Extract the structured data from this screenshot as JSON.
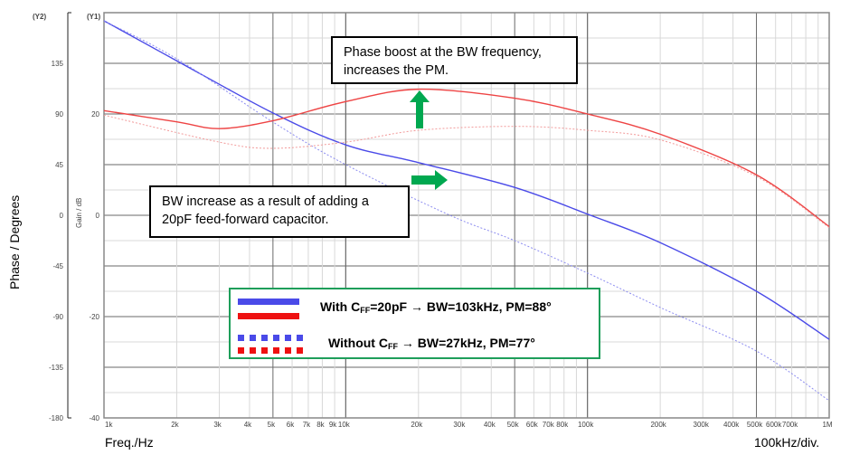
{
  "chart_data": {
    "type": "line",
    "xscale": "log",
    "xlim": [
      1000,
      1000000
    ],
    "x_ticks": [
      {
        "value": 1000,
        "label": "1k"
      },
      {
        "value": 2000,
        "label": "2k"
      },
      {
        "value": 3000,
        "label": "3k"
      },
      {
        "value": 4000,
        "label": "4k"
      },
      {
        "value": 5000,
        "label": "5k"
      },
      {
        "value": 6000,
        "label": "6k"
      },
      {
        "value": 7000,
        "label": "7k"
      },
      {
        "value": 8000,
        "label": "8k"
      },
      {
        "value": 9000,
        "label": "9k"
      },
      {
        "value": 10000,
        "label": "10k"
      },
      {
        "value": 20000,
        "label": "20k"
      },
      {
        "value": 30000,
        "label": "30k"
      },
      {
        "value": 40000,
        "label": "40k"
      },
      {
        "value": 50000,
        "label": "50k"
      },
      {
        "value": 60000,
        "label": "60k"
      },
      {
        "value": 70000,
        "label": "70k"
      },
      {
        "value": 80000,
        "label": "80k"
      },
      {
        "value": 100000,
        "label": "100k"
      },
      {
        "value": 200000,
        "label": "200k"
      },
      {
        "value": 300000,
        "label": "300k"
      },
      {
        "value": 400000,
        "label": "400k"
      },
      {
        "value": 500000,
        "label": "500k"
      },
      {
        "value": 600000,
        "label": "600k"
      },
      {
        "value": 700000,
        "label": "700k"
      },
      {
        "value": 1000000,
        "label": "1M"
      }
    ],
    "xlabel": "Freq./Hz",
    "xlabel_right": "100kHz/div.",
    "y1": {
      "tag": "(Y1)",
      "label": "Gain / dB",
      "ylim": [
        -40,
        40
      ],
      "ticks": [
        20,
        0,
        -20,
        -40
      ]
    },
    "y2": {
      "tag": "(Y2)",
      "label": "Phase / Degrees",
      "ylim": [
        -180,
        180
      ],
      "ticks": [
        135,
        90,
        45,
        0,
        -45,
        -90,
        -135,
        -180
      ]
    },
    "grid": true,
    "series": [
      {
        "axis": "y1",
        "color": "#4a4ae8",
        "style": "solid",
        "x": [
          1000,
          2000,
          5000,
          10000,
          20000,
          50000,
          103000,
          200000,
          500000,
          1000000
        ],
        "values": [
          38.4,
          30.5,
          20.2,
          13.9,
          10.4,
          5.5,
          0,
          -5.4,
          -15,
          -24.5
        ]
      },
      {
        "axis": "y1",
        "color": "#8c8cf0",
        "style": "dotted",
        "x": [
          1000,
          2000,
          5000,
          10000,
          27000,
          50000,
          100000,
          200000,
          500000,
          1000000
        ],
        "values": [
          38.4,
          30.9,
          18.4,
          10,
          0,
          -5,
          -11.4,
          -18.2,
          -26.8,
          -36.6
        ]
      },
      {
        "axis": "y2",
        "color": "#ee4444",
        "style": "solid",
        "x": [
          1000,
          2000,
          3000,
          5000,
          10000,
          20000,
          50000,
          100000,
          200000,
          500000,
          1000000
        ],
        "values": [
          93,
          83,
          77,
          84,
          101,
          112,
          104,
          90,
          72,
          36,
          -10
        ]
      },
      {
        "axis": "y2",
        "color": "#f29a9a",
        "style": "dotted",
        "x": [
          1000,
          3000,
          5000,
          10000,
          20000,
          50000,
          100000,
          200000,
          500000,
          1000000
        ],
        "values": [
          89,
          65,
          59.5,
          65,
          75.5,
          79,
          75.5,
          67,
          34.5,
          -11
        ]
      }
    ],
    "annotations": [
      {
        "text_lines": [
          "Phase boost at the BW frequency,",
          "increases the PM."
        ],
        "arrow": "up",
        "arrow_color": "#00a850"
      },
      {
        "text_lines": [
          "BW increase as a result of adding a",
          "20pF feed-forward capacitor."
        ],
        "arrow": "right",
        "arrow_color": "#00a850"
      }
    ],
    "legend": {
      "placement": "bottom-center",
      "entries": [
        {
          "pre": "With C",
          "sub": "FF",
          "post": "=20pF → BW=103kHz, PM=88°",
          "style": "solid",
          "colors": [
            "#4a4ae8",
            "#ee1111"
          ]
        },
        {
          "pre": "Without C",
          "sub": "FF",
          "post": " → BW=27kHz, PM=77°",
          "style": "dotted",
          "colors": [
            "#4a4ae8",
            "#ee1111"
          ]
        }
      ]
    }
  }
}
